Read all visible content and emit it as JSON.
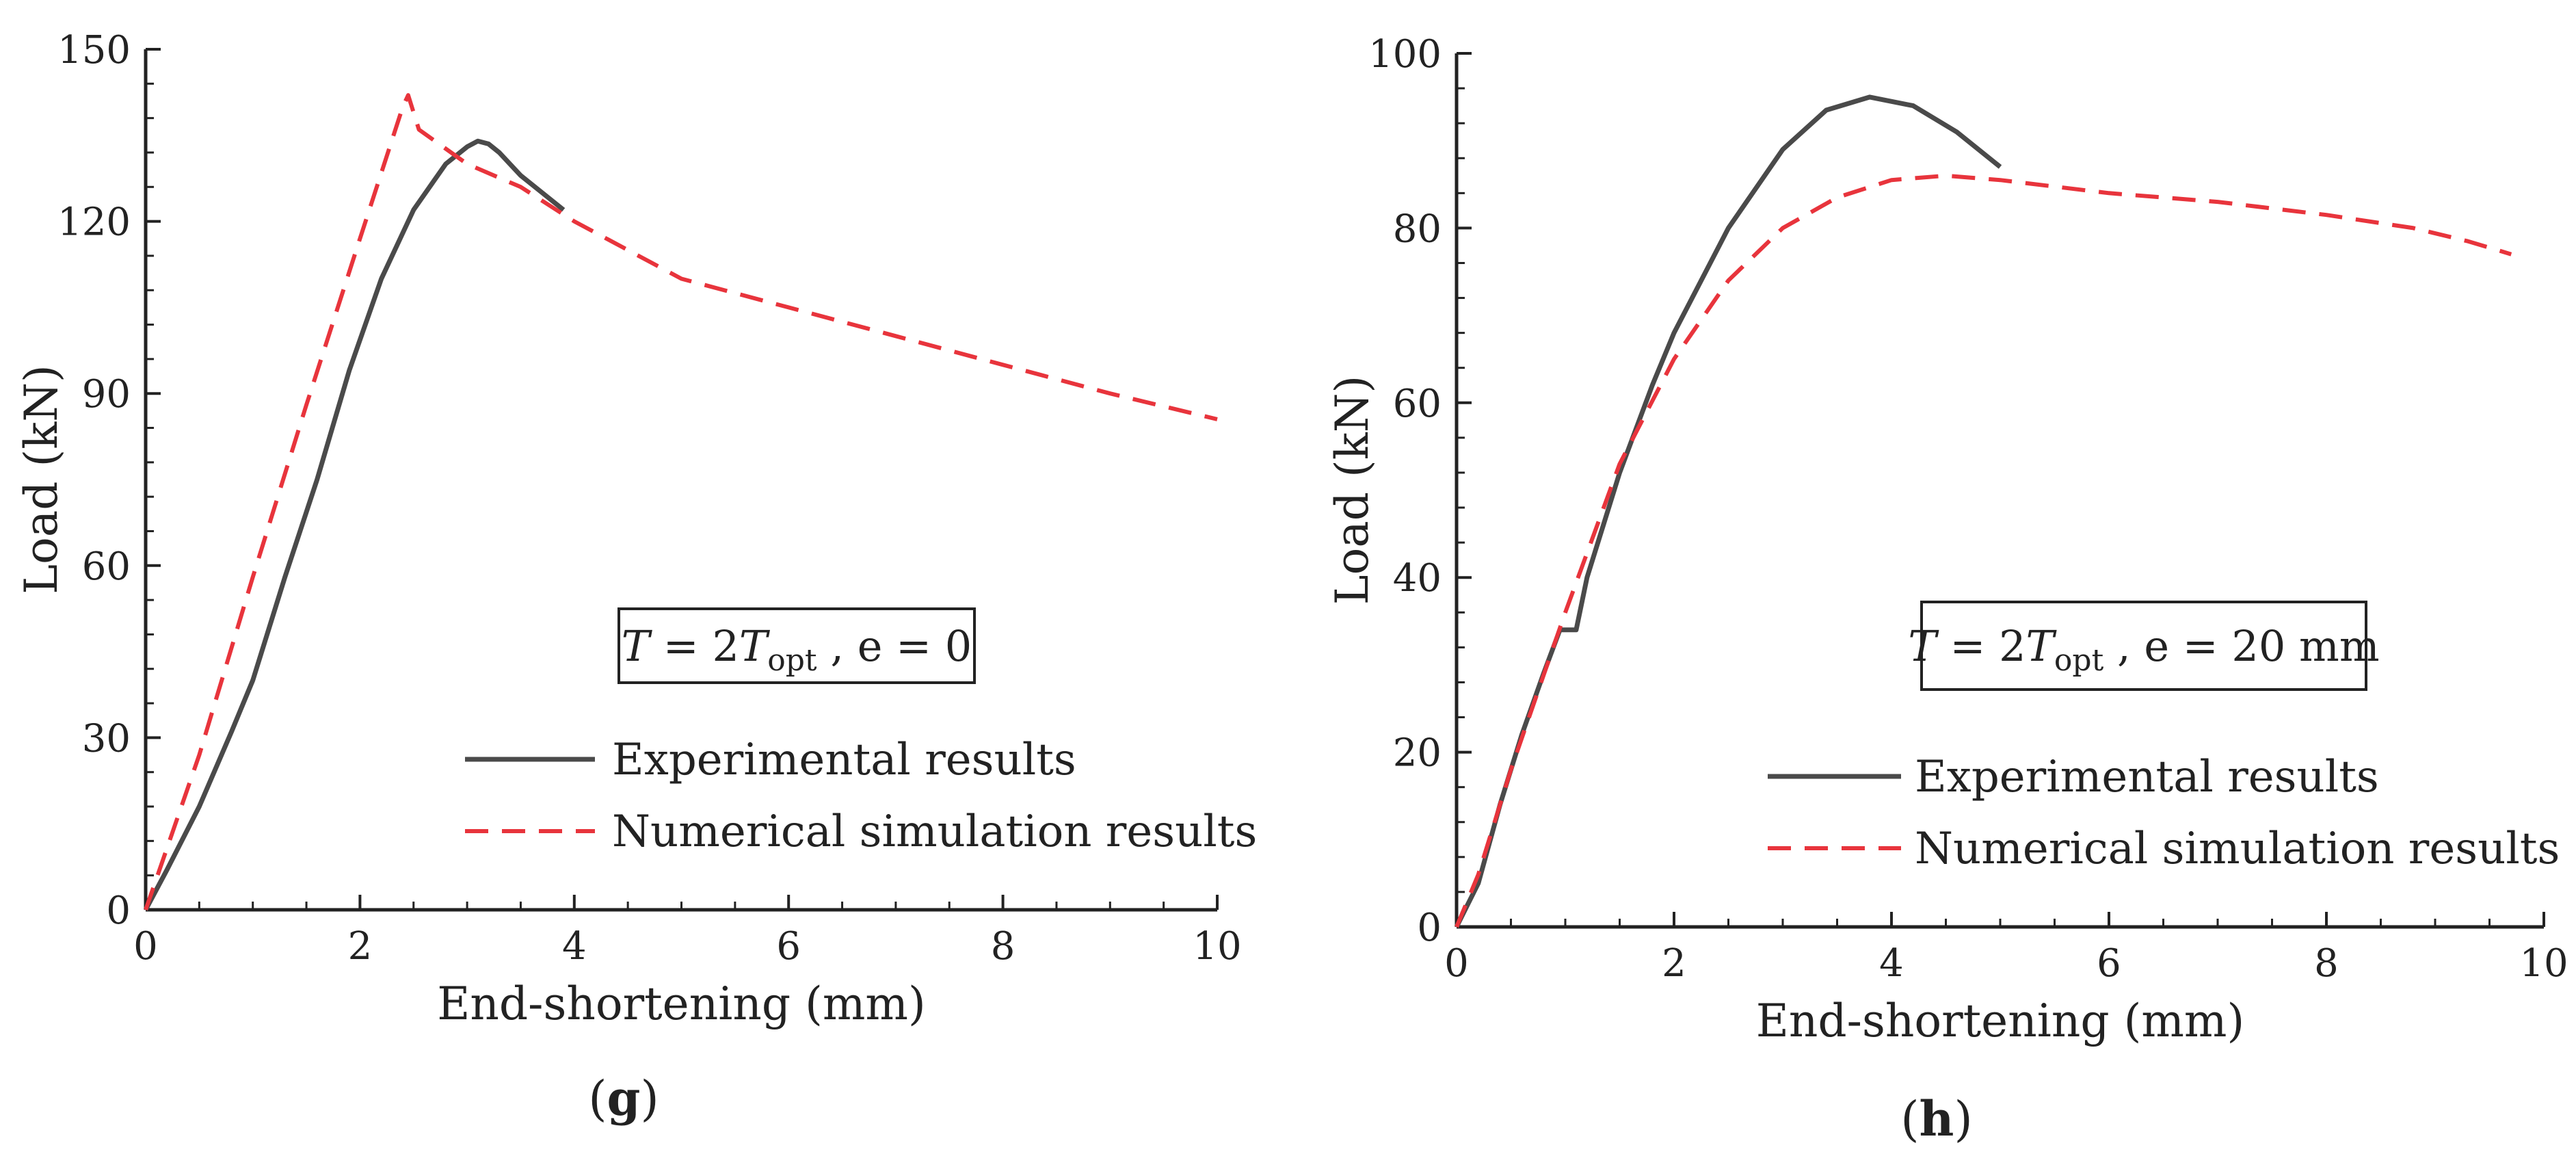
{
  "chart_data": [
    {
      "type": "line",
      "panel_label": "g",
      "xlabel": "End-shortening (mm)",
      "ylabel": "Load (kN)",
      "xlim": [
        0,
        10
      ],
      "ylim": [
        0,
        150
      ],
      "xticks": [
        "0",
        "2",
        "4",
        "6",
        "8",
        "10"
      ],
      "yticks": [
        "0",
        "30",
        "60",
        "90",
        "120",
        "150"
      ],
      "annotation": {
        "T": "T",
        "eq": " = 2",
        "T2": "T",
        "sub": "opt",
        "rest": " , e = 0"
      },
      "legend_position": "lower-right",
      "series": [
        {
          "name": "Experimental results",
          "color": "#4a4a4a",
          "dash": "solid",
          "x": [
            0,
            0.2,
            0.5,
            0.8,
            1.0,
            1.3,
            1.6,
            1.9,
            2.2,
            2.5,
            2.8,
            3.0,
            3.1,
            3.2,
            3.3,
            3.5,
            3.7,
            3.9
          ],
          "y": [
            0,
            7,
            18,
            31,
            40,
            58,
            75,
            94,
            110,
            122,
            130,
            133,
            134,
            133.5,
            132,
            128,
            125,
            122
          ]
        },
        {
          "name": "Numerical simulation results",
          "color": "#e8343c",
          "dash": "dashed",
          "x": [
            0,
            0.5,
            1.0,
            1.5,
            2.0,
            2.4,
            2.45,
            2.55,
            3.0,
            3.5,
            4.0,
            5.0,
            6.0,
            7.0,
            8.0,
            9.0,
            10.0
          ],
          "y": [
            0,
            27,
            58,
            88,
            117,
            140,
            142,
            136,
            130,
            126,
            120,
            110,
            105,
            100,
            95,
            90,
            85.5
          ]
        }
      ]
    },
    {
      "type": "line",
      "panel_label": "h",
      "xlabel": "End-shortening (mm)",
      "ylabel": "Load (kN)",
      "xlim": [
        0,
        10
      ],
      "ylim": [
        0,
        100
      ],
      "xticks": [
        "0",
        "2",
        "4",
        "6",
        "8",
        "10"
      ],
      "yticks": [
        "0",
        "20",
        "40",
        "60",
        "80",
        "100"
      ],
      "annotation": {
        "T": "T",
        "eq": " = 2",
        "T2": "T",
        "sub": "opt",
        "rest": " , e = 20 mm"
      },
      "legend_position": "lower-right",
      "series": [
        {
          "name": "Experimental results",
          "color": "#4a4a4a",
          "dash": "solid",
          "x": [
            0,
            0.2,
            0.4,
            0.6,
            0.8,
            0.95,
            1.0,
            1.1,
            1.2,
            1.5,
            1.8,
            2.0,
            2.5,
            3.0,
            3.4,
            3.8,
            4.2,
            4.6,
            5.0
          ],
          "y": [
            0,
            5,
            14,
            22,
            29,
            34,
            34,
            34,
            40,
            52,
            62,
            68,
            80,
            89,
            93.5,
            95,
            94,
            91,
            87
          ]
        },
        {
          "name": "Numerical simulation results",
          "color": "#e8343c",
          "dash": "dashed",
          "x": [
            0,
            0.2,
            0.5,
            1.0,
            1.5,
            2.0,
            2.5,
            3.0,
            3.5,
            4.0,
            4.5,
            5.0,
            6.0,
            7.0,
            8.0,
            8.8,
            9.3,
            9.7
          ],
          "y": [
            0,
            6,
            18,
            36,
            53,
            65,
            74,
            80,
            83.5,
            85.5,
            86,
            85.5,
            84,
            83,
            81.5,
            80,
            78.5,
            77
          ]
        }
      ]
    }
  ]
}
